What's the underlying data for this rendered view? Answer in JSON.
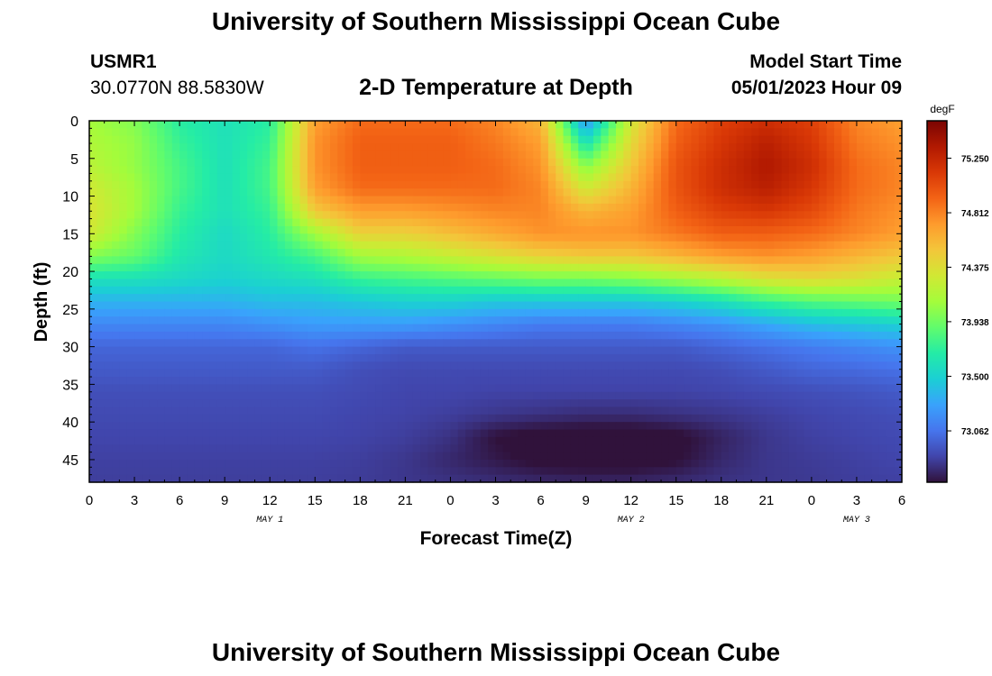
{
  "page": {
    "title": "University of Southern Mississippi Ocean Cube",
    "footer_title": "University of Southern Mississippi Ocean Cube",
    "station_id": "USMR1",
    "station_coords": "30.0770N  88.5830W",
    "plot_title": "2-D Temperature at Depth",
    "model_start_label": "Model Start Time",
    "model_start_value": "05/01/2023 Hour 09"
  },
  "chart_data": {
    "type": "heatmap",
    "xlabel": "Forecast Time(Z)",
    "ylabel": "Depth (ft)",
    "colorbar_label": "degF",
    "x_ticks": [
      "0",
      "3",
      "6",
      "9",
      "12",
      "15",
      "18",
      "21",
      "0",
      "3",
      "6",
      "9",
      "12",
      "15",
      "18",
      "21",
      "0",
      "3",
      "6"
    ],
    "x_hours": [
      0,
      3,
      6,
      9,
      12,
      15,
      18,
      21,
      24,
      27,
      30,
      33,
      36,
      39,
      42,
      45,
      48,
      51,
      54
    ],
    "date_labels": [
      {
        "text": "MAY 1",
        "hour": 12
      },
      {
        "text": "MAY 2",
        "hour": 36
      },
      {
        "text": "MAY 3",
        "hour": 51
      }
    ],
    "y_ticks": [
      "0",
      "5",
      "10",
      "15",
      "20",
      "25",
      "30",
      "35",
      "40",
      "45"
    ],
    "y_values": [
      0,
      5,
      10,
      15,
      20,
      25,
      30,
      35,
      40,
      45
    ],
    "xlim": [
      0,
      54
    ],
    "ylim": [
      0,
      48
    ],
    "colorbar_ticks": [
      "75.250",
      "74.812",
      "74.375",
      "73.938",
      "73.500",
      "73.062"
    ],
    "colorbar_values": [
      75.25,
      74.812,
      74.375,
      73.938,
      73.5,
      73.062
    ],
    "clim": [
      72.65,
      75.55
    ],
    "colormap": [
      "#30123b",
      "#4145ab",
      "#4675ed",
      "#39a2fc",
      "#1bcfd4",
      "#24eca6",
      "#61fc6c",
      "#a4fc3b",
      "#d1e834",
      "#f3c63a",
      "#fe9b2d",
      "#f36315",
      "#d93806",
      "#b11901",
      "#7a0402"
    ],
    "depths": [
      0,
      3,
      6,
      9,
      12,
      15,
      18,
      21,
      24,
      27,
      30,
      33,
      36,
      39,
      42,
      45,
      48
    ],
    "hours": [
      0,
      3,
      6,
      9,
      12,
      15,
      18,
      21,
      24,
      27,
      30,
      33,
      36,
      39,
      42,
      45,
      48,
      51,
      54
    ],
    "temperature": [
      [
        74.1,
        74.0,
        73.7,
        73.6,
        73.7,
        74.7,
        74.9,
        74.9,
        74.9,
        74.8,
        74.6,
        73.2,
        74.3,
        74.9,
        75.1,
        75.2,
        75.1,
        74.8,
        74.7
      ],
      [
        74.15,
        74.05,
        73.75,
        73.6,
        73.75,
        74.75,
        74.95,
        74.95,
        74.95,
        74.85,
        74.7,
        73.6,
        74.4,
        74.95,
        75.15,
        75.3,
        75.15,
        74.85,
        74.75
      ],
      [
        74.2,
        74.05,
        73.8,
        73.6,
        73.8,
        74.75,
        74.95,
        74.95,
        74.95,
        74.9,
        74.75,
        74.0,
        74.5,
        75.0,
        75.2,
        75.35,
        75.2,
        74.9,
        74.8
      ],
      [
        74.3,
        74.1,
        73.8,
        73.6,
        73.8,
        74.7,
        74.9,
        74.9,
        74.9,
        74.9,
        74.8,
        74.3,
        74.6,
        75.0,
        75.2,
        75.3,
        75.15,
        74.9,
        74.8
      ],
      [
        74.35,
        74.1,
        73.75,
        73.6,
        73.75,
        74.5,
        74.7,
        74.7,
        74.75,
        74.8,
        74.8,
        74.6,
        74.7,
        74.95,
        75.1,
        75.15,
        75.05,
        74.85,
        74.75
      ],
      [
        74.3,
        74.0,
        73.7,
        73.55,
        73.7,
        74.1,
        74.45,
        74.45,
        74.55,
        74.65,
        74.75,
        74.75,
        74.75,
        74.85,
        74.95,
        74.95,
        74.9,
        74.8,
        74.7
      ],
      [
        74.0,
        73.9,
        73.65,
        73.55,
        73.65,
        73.8,
        74.1,
        74.15,
        74.25,
        74.35,
        74.45,
        74.5,
        74.5,
        74.6,
        74.7,
        74.75,
        74.7,
        74.6,
        74.5
      ],
      [
        73.6,
        73.6,
        73.55,
        73.5,
        73.55,
        73.6,
        73.75,
        73.8,
        73.85,
        73.9,
        73.95,
        73.95,
        74.0,
        74.1,
        74.2,
        74.35,
        74.4,
        74.35,
        74.25
      ],
      [
        73.35,
        73.35,
        73.35,
        73.35,
        73.4,
        73.4,
        73.45,
        73.5,
        73.5,
        73.45,
        73.45,
        73.45,
        73.45,
        73.5,
        73.6,
        73.75,
        73.85,
        73.9,
        73.95
      ],
      [
        73.15,
        73.15,
        73.15,
        73.15,
        73.2,
        73.25,
        73.25,
        73.25,
        73.2,
        73.15,
        73.1,
        73.1,
        73.1,
        73.15,
        73.2,
        73.3,
        73.4,
        73.45,
        73.5
      ],
      [
        73.0,
        73.0,
        73.0,
        73.0,
        73.0,
        73.05,
        73.0,
        72.95,
        72.95,
        72.95,
        72.95,
        72.95,
        72.95,
        72.95,
        73.0,
        73.05,
        73.1,
        73.15,
        73.2
      ],
      [
        72.95,
        72.95,
        72.95,
        72.95,
        72.95,
        72.95,
        72.9,
        72.88,
        72.88,
        72.88,
        72.88,
        72.88,
        72.88,
        72.88,
        72.9,
        72.95,
        73.0,
        73.02,
        73.05
      ],
      [
        72.9,
        72.9,
        72.9,
        72.9,
        72.9,
        72.9,
        72.88,
        72.86,
        72.86,
        72.85,
        72.85,
        72.85,
        72.85,
        72.85,
        72.86,
        72.88,
        72.9,
        72.92,
        72.95
      ],
      [
        72.88,
        72.88,
        72.88,
        72.88,
        72.88,
        72.88,
        72.86,
        72.85,
        72.83,
        72.8,
        72.78,
        72.76,
        72.76,
        72.78,
        72.8,
        72.83,
        72.86,
        72.88,
        72.9
      ],
      [
        72.86,
        72.86,
        72.86,
        72.86,
        72.86,
        72.86,
        72.85,
        72.83,
        72.78,
        72.65,
        72.6,
        72.58,
        72.58,
        72.62,
        72.72,
        72.8,
        72.84,
        72.86,
        72.88
      ],
      [
        72.84,
        72.84,
        72.84,
        72.84,
        72.84,
        72.84,
        72.83,
        72.8,
        72.74,
        72.68,
        72.62,
        72.6,
        72.6,
        72.64,
        72.74,
        72.8,
        72.82,
        72.84,
        72.86
      ],
      [
        72.83,
        72.83,
        72.83,
        72.83,
        72.83,
        72.83,
        72.82,
        72.8,
        72.78,
        72.76,
        72.74,
        72.73,
        72.73,
        72.75,
        72.78,
        72.8,
        72.81,
        72.83,
        72.84
      ]
    ]
  }
}
